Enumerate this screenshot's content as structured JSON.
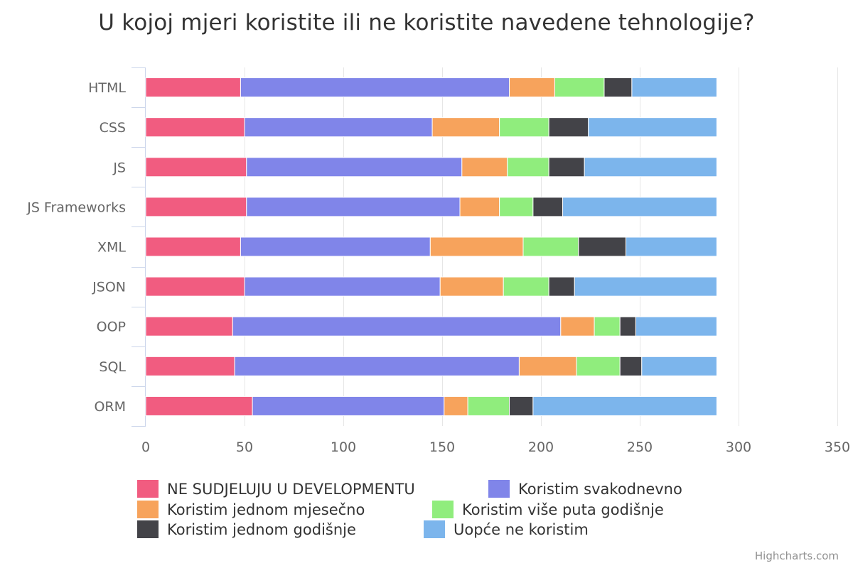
{
  "chart_data": {
    "type": "bar",
    "orientation": "horizontal",
    "stacked": true,
    "title": "U kojoj mjeri koristite ili ne koristite navedene tehnologije?",
    "categories": [
      "HTML",
      "CSS",
      "JS",
      "JS Frameworks",
      "XML",
      "JSON",
      "OOP",
      "SQL",
      "ORM"
    ],
    "xlim": [
      0,
      350
    ],
    "xticks": [
      0,
      50,
      100,
      150,
      200,
      250,
      300,
      350
    ],
    "grid": true,
    "legend_placement": "bottom",
    "series": [
      {
        "name": "NE SUDJELUJU U DEVELOPMENTU",
        "color": "#f15c80",
        "values": [
          48,
          50,
          51,
          51,
          48,
          50,
          44,
          45,
          54
        ]
      },
      {
        "name": "Koristim svakodnevno",
        "color": "#8085e9",
        "values": [
          136,
          95,
          109,
          108,
          96,
          99,
          166,
          144,
          97
        ]
      },
      {
        "name": "Koristim jednom mjesečno",
        "color": "#f7a35c",
        "values": [
          23,
          34,
          23,
          20,
          47,
          32,
          17,
          29,
          12
        ]
      },
      {
        "name": "Koristim više puta godišnje",
        "color": "#90ed7d",
        "values": [
          25,
          25,
          21,
          17,
          28,
          23,
          13,
          22,
          21
        ]
      },
      {
        "name": "Koristim jednom godišnje",
        "color": "#434348",
        "values": [
          14,
          20,
          18,
          15,
          24,
          13,
          8,
          11,
          12
        ]
      },
      {
        "name": "Uopće ne koristim",
        "color": "#7cb5ec",
        "values": [
          43,
          65,
          67,
          78,
          46,
          72,
          41,
          38,
          93
        ]
      }
    ]
  },
  "credits": "Highcharts.com"
}
